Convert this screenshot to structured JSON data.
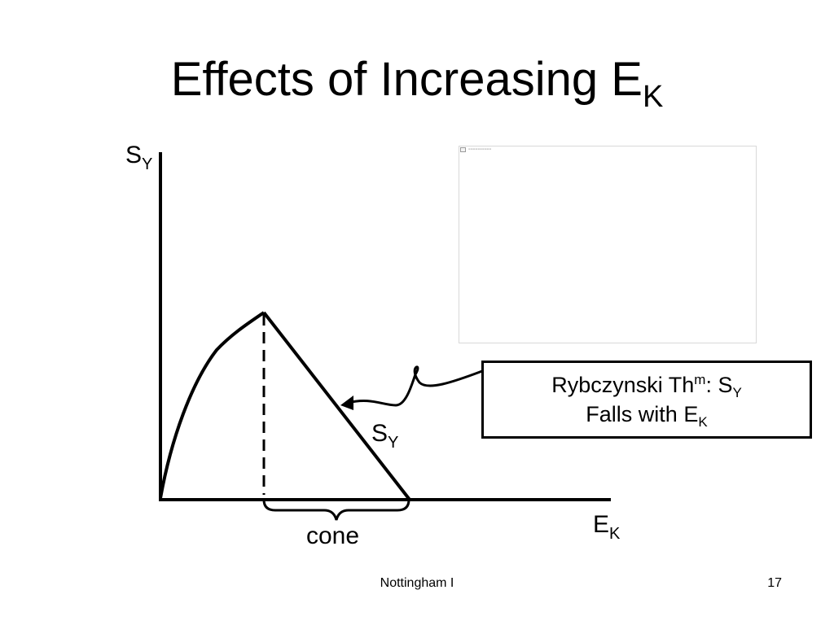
{
  "title": {
    "text": "Effects of Increasing E",
    "subscript": "K"
  },
  "diagram": {
    "y_axis_label": {
      "text": "S",
      "subscript": "Y"
    },
    "x_axis_label": {
      "text": "E",
      "subscript": "K"
    },
    "curve_label": {
      "text": "S",
      "subscript": "Y"
    },
    "cone_label": "cone"
  },
  "callout": {
    "line1_prefix": "Rybczynski Th",
    "line1_superscript": "m",
    "line1_middle": ":  S",
    "line1_subscript": "Y",
    "line2_prefix": "Falls with E",
    "line2_subscript": "K"
  },
  "footer": {
    "center": "Nottingham I",
    "page_number": "17"
  },
  "colors": {
    "ink": "#000000",
    "background": "#ffffff",
    "placeholder_border": "#d8d8d8"
  }
}
